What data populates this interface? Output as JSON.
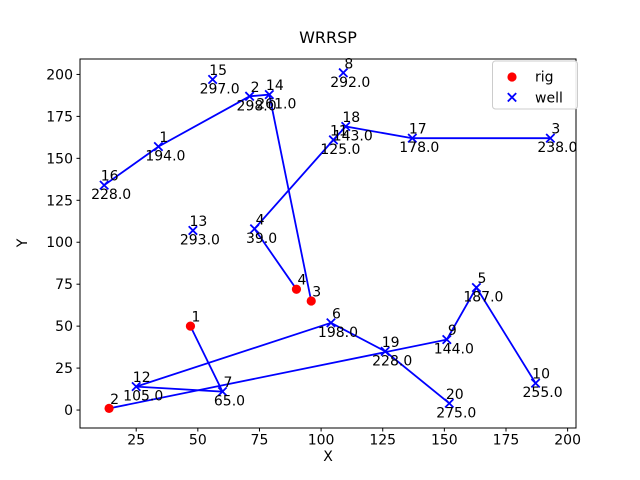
{
  "figure": {
    "title": "WRRSP"
  },
  "chart_data": {
    "type": "scatter",
    "title": "WRRSP",
    "xlabel": "X",
    "ylabel": "Y",
    "xlim": [
      2.2,
      203.4
    ],
    "ylim": [
      -10.7,
      209.2
    ],
    "xticks": [
      25,
      50,
      75,
      100,
      125,
      150,
      175,
      200
    ],
    "yticks": [
      0,
      25,
      50,
      75,
      100,
      125,
      150,
      175,
      200
    ],
    "grid": false,
    "colors": {
      "route_line": "#0000ff",
      "rig_marker": "#ff0000",
      "well_marker": "#0000ff",
      "text": "#000000",
      "legend_border": "#cccccc"
    },
    "legend": {
      "position": "upper right",
      "entries": [
        {
          "label": "rig",
          "marker": "circle",
          "color": "#ff0000"
        },
        {
          "label": "well",
          "marker": "x",
          "color": "#0000ff"
        }
      ]
    },
    "rigs": [
      {
        "id": 1,
        "x": 47,
        "y": 50
      },
      {
        "id": 2,
        "x": 14,
        "y": 1
      },
      {
        "id": 3,
        "x": 96,
        "y": 65
      },
      {
        "id": 4,
        "x": 90,
        "y": 72
      }
    ],
    "wells": [
      {
        "id": 1,
        "x": 34,
        "y": 157,
        "value": "194.0"
      },
      {
        "id": 2,
        "x": 71,
        "y": 187,
        "value": "298.0"
      },
      {
        "id": 3,
        "x": 193,
        "y": 162,
        "value": "238.0"
      },
      {
        "id": 4,
        "x": 73,
        "y": 108,
        "value": "39.0"
      },
      {
        "id": 5,
        "x": 163,
        "y": 73,
        "value": "187.0"
      },
      {
        "id": 6,
        "x": 104,
        "y": 52,
        "value": "198.0"
      },
      {
        "id": 7,
        "x": 60,
        "y": 11,
        "value": "65.0"
      },
      {
        "id": 8,
        "x": 109,
        "y": 201,
        "value": "292.0"
      },
      {
        "id": 9,
        "x": 151,
        "y": 42,
        "value": "144.0"
      },
      {
        "id": 10,
        "x": 187,
        "y": 16,
        "value": "255.0"
      },
      {
        "id": 11,
        "x": 105,
        "y": 161,
        "value": "125.0"
      },
      {
        "id": 12,
        "x": 25,
        "y": 14,
        "value": "105.0"
      },
      {
        "id": 13,
        "x": 48,
        "y": 107,
        "value": "293.0"
      },
      {
        "id": 14,
        "x": 79,
        "y": 188,
        "value": "261.0"
      },
      {
        "id": 15,
        "x": 56,
        "y": 197,
        "value": "297.0"
      },
      {
        "id": 16,
        "x": 12,
        "y": 134,
        "value": "228.0"
      },
      {
        "id": 17,
        "x": 137,
        "y": 162,
        "value": "178.0"
      },
      {
        "id": 18,
        "x": 110,
        "y": 169,
        "value": "143.0"
      },
      {
        "id": 19,
        "x": 126,
        "y": 35,
        "value": "228.0"
      },
      {
        "id": 20,
        "x": 152,
        "y": 4,
        "value": "275.0"
      }
    ],
    "routes": [
      {
        "rig": 1,
        "wells": [
          7,
          12,
          6,
          19,
          20
        ]
      },
      {
        "rig": 2,
        "wells": [
          9,
          5,
          10
        ]
      },
      {
        "rig": 3,
        "wells": [
          14,
          2,
          1,
          16
        ]
      },
      {
        "rig": 4,
        "wells": [
          4,
          11,
          18,
          17,
          3
        ]
      }
    ]
  }
}
